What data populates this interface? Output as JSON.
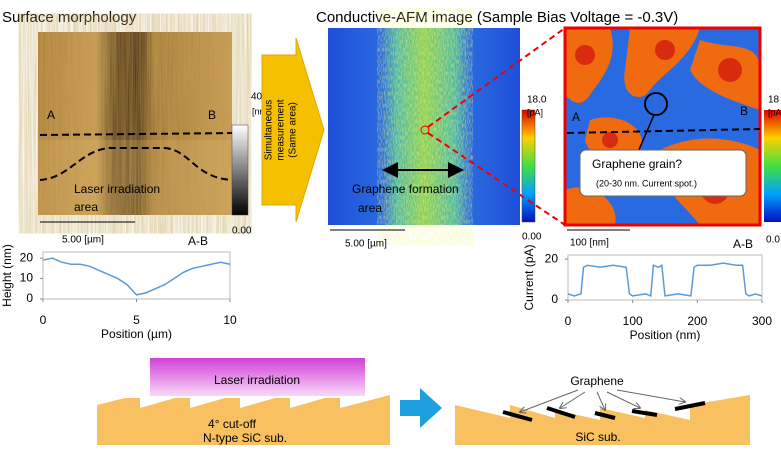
{
  "left": {
    "title": "Surface morphology",
    "label_a": "A",
    "label_b": "B",
    "colorbar_max": "40.0",
    "colorbar_unit": "[nm]",
    "colorbar_min": "0.00",
    "scale_bar": "5.00 [µm]",
    "region_label": [
      "Laser irradiation",
      "area"
    ],
    "profile": {
      "type": "line",
      "title": "A-B",
      "ylabel": "Height  (nm)",
      "xlabel": "Position (µm)",
      "xlim": [
        0,
        10
      ],
      "ylim": [
        0,
        23
      ],
      "xticks": [
        0,
        5,
        10
      ],
      "yticks": [
        0,
        10,
        20
      ],
      "color": "#5b9bd5",
      "x": [
        0,
        0.5,
        1,
        1.5,
        2,
        2.5,
        3,
        3.5,
        4,
        4.5,
        5,
        5.5,
        6,
        6.5,
        7,
        7.5,
        8,
        8.5,
        9,
        9.5,
        10
      ],
      "values": [
        19,
        20,
        18,
        17,
        17,
        16,
        14,
        12,
        10,
        7,
        2,
        3,
        5,
        7,
        10,
        13,
        15,
        16,
        17,
        18,
        17
      ]
    }
  },
  "arrow_text": [
    "Simultaneous",
    "measurement",
    "(Same area)"
  ],
  "right": {
    "title": "Conductive-AFM image (Sample Bias Voltage = -0.3V)",
    "colorbar_max": "18.0",
    "colorbar_unit": "[pA]",
    "colorbar_min": "0.00",
    "scale_bar": "5.00 [µm]",
    "region_label": [
      "Graphene formation",
      "area"
    ],
    "zoom": {
      "label_a": "A",
      "label_b": "B",
      "callout": "Graphene grain?",
      "callout_note": "(20-30 nm. Current spot.)",
      "scale_bar": "100 [nm]",
      "colorbar_max": "18",
      "colorbar_unit": "[pA",
      "colorbar_min": "0.0"
    },
    "profile": {
      "type": "line",
      "title": "A-B",
      "ylabel": "Current  (pA)",
      "xlabel": "Position (nm)",
      "xlim": [
        0,
        300
      ],
      "ylim": [
        0,
        22
      ],
      "xticks": [
        0,
        100,
        200,
        300
      ],
      "yticks": [
        0,
        20
      ],
      "color": "#5b9bd5",
      "x": [
        0,
        10,
        20,
        24,
        30,
        50,
        70,
        90,
        95,
        100,
        120,
        128,
        132,
        140,
        145,
        150,
        170,
        190,
        195,
        200,
        220,
        240,
        260,
        270,
        275,
        280,
        290,
        300
      ],
      "values": [
        3,
        2,
        3,
        16,
        17,
        16,
        17,
        16,
        3,
        2,
        3,
        2,
        17,
        16,
        17,
        2,
        3,
        2,
        16,
        17,
        17,
        18,
        17,
        17,
        3,
        2,
        3,
        2
      ]
    }
  },
  "bottom": {
    "laser": "Laser irradiation",
    "cutoff": "4°  cut-off",
    "substrate_left": "N-type SiC sub.",
    "graphene": "Graphene",
    "substrate_right": "SiC sub."
  }
}
